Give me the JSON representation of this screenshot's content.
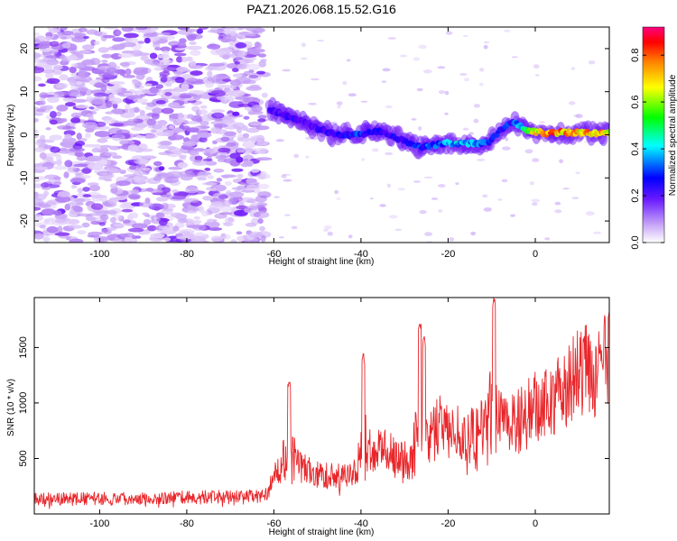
{
  "title": "PAZ1.2026.068.15.52.G16",
  "colors": {
    "snr_line": "#e8262a",
    "axis": "#000000",
    "spectrogram_ramp": [
      "#ffffff",
      "#dcc8fa",
      "#b88cf5",
      "#8c3cf0",
      "#5a00ff",
      "#0000ff",
      "#00ffff",
      "#00ff00",
      "#ffff00",
      "#ff8000",
      "#ff0000",
      "#ff0080"
    ]
  },
  "chart_data": [
    {
      "type": "heatmap",
      "name": "spectrogram",
      "xlabel": "Height of straight line (km)",
      "ylabel": "Frequency (Hz)",
      "xlim": [
        -115,
        17
      ],
      "ylim": [
        -25,
        25
      ],
      "xticks": [
        -100,
        -80,
        -60,
        -40,
        -20,
        0
      ],
      "yticks": [
        -20,
        -10,
        0,
        10,
        20
      ],
      "colorbar": {
        "label": "Normalized spectral amplitude",
        "range": [
          0,
          0.92
        ],
        "ticks": [
          "0.0",
          "0.2",
          "0.4",
          "0.6",
          "0.8"
        ]
      },
      "ridge": {
        "x": [
          -61,
          -56,
          -51,
          -46,
          -41,
          -36,
          -31,
          -26,
          -21,
          -16,
          -11,
          -8,
          -5,
          -2,
          2,
          8,
          17
        ],
        "y": [
          6,
          4,
          2,
          0,
          0,
          1,
          -1,
          -3,
          -2,
          -2,
          -2,
          1,
          3,
          1,
          0.5,
          0.5,
          0.5
        ],
        "amplitude": [
          0.25,
          0.3,
          0.25,
          0.3,
          0.35,
          0.3,
          0.3,
          0.35,
          0.4,
          0.45,
          0.35,
          0.3,
          0.35,
          0.6,
          0.9,
          0.85,
          0.8
        ]
      },
      "noise_region": {
        "x": [
          -115,
          -62
        ],
        "y": [
          -25,
          25
        ],
        "amplitude": [
          0.02,
          0.12
        ]
      }
    },
    {
      "type": "line",
      "name": "snr",
      "xlabel": "Height of straight line (km)",
      "ylabel": "SNR (10 * v/v)",
      "xlim": [
        -115,
        17
      ],
      "ylim": [
        0,
        1950
      ],
      "xticks": [
        -100,
        -80,
        -60,
        -40,
        -20,
        0
      ],
      "yticks": [
        500,
        1000,
        1500
      ],
      "trend": {
        "x": [
          -115,
          -62,
          -58,
          -50,
          -42,
          -35,
          -28,
          -22,
          -15,
          -10,
          -5,
          0,
          5,
          10,
          17
        ],
        "y": [
          130,
          160,
          500,
          350,
          340,
          600,
          450,
          800,
          700,
          820,
          800,
          950,
          1050,
          1250,
          1400
        ]
      },
      "spikes": [
        {
          "x": -56.5,
          "y": 1200
        },
        {
          "x": -39.5,
          "y": 1450
        },
        {
          "x": -26.5,
          "y": 1720
        },
        {
          "x": -25.5,
          "y": 1600
        },
        {
          "x": -9.5,
          "y": 1950
        },
        {
          "x": 17,
          "y": 1830
        }
      ]
    }
  ]
}
